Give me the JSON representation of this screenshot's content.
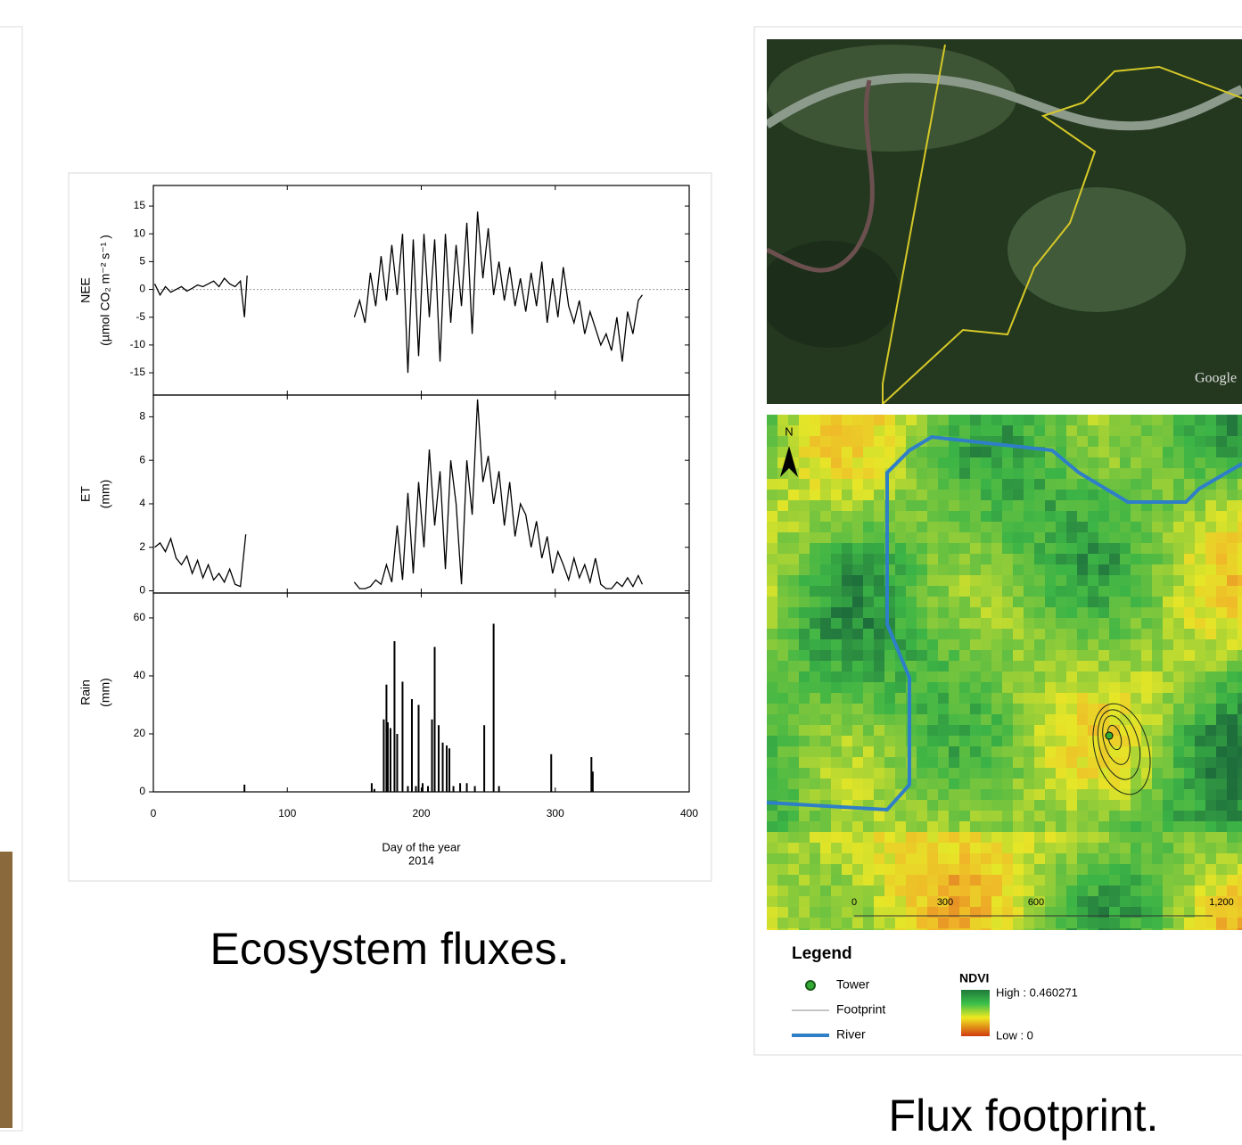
{
  "chart_data": [
    {
      "type": "line",
      "ylabel": [
        "NEE",
        "(µmol CO₂ m⁻² s⁻¹ )"
      ],
      "color": "#000000",
      "zero_line": true,
      "xlim": [
        0,
        400
      ],
      "xticks": [
        0,
        100,
        200,
        300,
        400
      ],
      "ylim": [
        -19,
        18.7
      ],
      "yticks": [
        -15,
        -10,
        -5,
        0,
        5,
        10,
        15
      ],
      "x": [
        1,
        5,
        9,
        13,
        17,
        21,
        25,
        29,
        33,
        37,
        41,
        45,
        49,
        53,
        57,
        61,
        65,
        68,
        70,
        110,
        150,
        154,
        158,
        162,
        166,
        170,
        174,
        178,
        182,
        186,
        190,
        194,
        198,
        202,
        206,
        210,
        214,
        218,
        222,
        226,
        230,
        234,
        238,
        242,
        246,
        250,
        254,
        258,
        262,
        266,
        270,
        274,
        278,
        282,
        286,
        290,
        294,
        298,
        302,
        306,
        310,
        314,
        318,
        322,
        326,
        330,
        334,
        338,
        342,
        346,
        350,
        354,
        358,
        362,
        365
      ],
      "values": [
        1,
        -1,
        0.5,
        -0.5,
        0,
        0.5,
        -0.3,
        0.2,
        0.8,
        0.5,
        1,
        1.5,
        0.5,
        2,
        1,
        0.5,
        1.5,
        -5,
        2.5,
        null,
        -5,
        -2,
        -6,
        3,
        -3,
        6,
        -2,
        8,
        -1,
        10,
        -15,
        9,
        -12,
        10,
        -5,
        9,
        -13,
        10,
        -6,
        8,
        -3,
        12,
        -8,
        14,
        2,
        11,
        -1,
        5,
        -2,
        4,
        -3,
        2,
        -4,
        3,
        -3,
        5,
        -6,
        2,
        -5,
        4,
        -3,
        -6,
        -2,
        -8,
        -4,
        -7,
        -10,
        -8,
        -11,
        -5,
        -13,
        -4,
        -8,
        -2,
        -1
      ]
    },
    {
      "type": "line",
      "ylabel": [
        "ET",
        "(mm)"
      ],
      "color": "#000000",
      "xlim": [
        0,
        400
      ],
      "xticks": [
        0,
        100,
        200,
        300,
        400
      ],
      "ylim": [
        -0.1,
        9
      ],
      "yticks": [
        0,
        2,
        4,
        6,
        8
      ],
      "x": [
        1,
        5,
        9,
        13,
        17,
        21,
        25,
        29,
        33,
        37,
        41,
        45,
        49,
        53,
        57,
        61,
        65,
        69,
        110,
        150,
        154,
        158,
        162,
        166,
        170,
        174,
        178,
        182,
        186,
        190,
        194,
        198,
        202,
        206,
        210,
        214,
        218,
        222,
        226,
        230,
        234,
        238,
        242,
        246,
        250,
        254,
        258,
        262,
        266,
        270,
        274,
        278,
        282,
        286,
        290,
        294,
        298,
        302,
        306,
        310,
        314,
        318,
        322,
        326,
        330,
        334,
        338,
        342,
        346,
        350,
        354,
        358,
        362,
        365
      ],
      "values": [
        2,
        2.2,
        1.8,
        2.4,
        1.5,
        1.2,
        1.6,
        0.8,
        1.4,
        0.6,
        1.2,
        0.5,
        0.8,
        0.4,
        1,
        0.3,
        0.2,
        2.6,
        null,
        0.4,
        0.1,
        0.1,
        0.2,
        0.5,
        0.3,
        1.2,
        0.4,
        3,
        0.5,
        4.5,
        0.8,
        5,
        2,
        6.5,
        3,
        5.5,
        1,
        6,
        4,
        0.3,
        6,
        3.5,
        8.8,
        5,
        6.2,
        4,
        5.5,
        3,
        5,
        2.5,
        4,
        3.5,
        2,
        3.2,
        1.5,
        2.5,
        0.8,
        1.8,
        1.2,
        0.5,
        1.5,
        0.6,
        1.2,
        0.4,
        1.5,
        0.3,
        0.1,
        0.1,
        0.4,
        0.2,
        0.6,
        0.2,
        0.7,
        0.3
      ]
    },
    {
      "type": "bar",
      "ylabel": [
        "Rain",
        "(mm)"
      ],
      "color": "#000000",
      "xlabel": [
        "Day of the year",
        "2014"
      ],
      "xlim": [
        0,
        400
      ],
      "xticks": [
        0,
        100,
        200,
        300,
        400
      ],
      "ylim": [
        0,
        68.6
      ],
      "yticks": [
        0,
        20,
        40,
        60
      ],
      "x": [
        68,
        163,
        165,
        172,
        174,
        175,
        177,
        180,
        182,
        186,
        190,
        193,
        196,
        198,
        201,
        205,
        208,
        210,
        213,
        216,
        219,
        221,
        224,
        229,
        234,
        240,
        247,
        254,
        258,
        297,
        327,
        328
      ],
      "values": [
        2.5,
        3,
        1,
        25,
        37,
        24,
        22,
        52,
        20,
        38,
        2,
        32,
        2,
        30,
        3,
        2,
        25,
        50,
        23,
        17,
        16,
        15,
        2,
        3,
        3,
        2,
        23,
        58,
        2,
        13,
        12,
        7
      ]
    }
  ],
  "captions": [
    "Ecosystem fluxes.",
    "Flux footprint."
  ],
  "map": {
    "google_label": "Google",
    "north": "N",
    "scale": [
      "0",
      "300",
      "600",
      "1,200"
    ]
  },
  "legend": {
    "title": "Legend",
    "items": [
      "Tower",
      "Footprint",
      "River"
    ],
    "ndvi_title": "NDVI",
    "high": "High : 0.460271",
    "low": "Low : 0"
  }
}
